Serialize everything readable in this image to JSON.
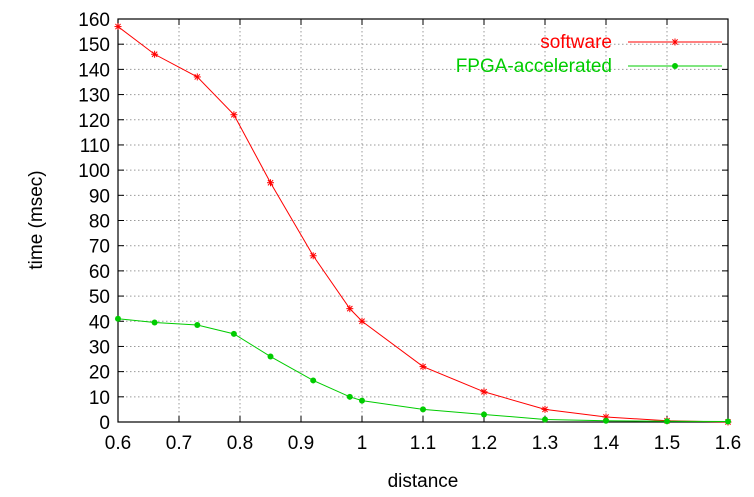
{
  "chart_data": {
    "type": "line",
    "xlabel": "distance",
    "ylabel": "time (msec)",
    "xlim": [
      0.6,
      1.6
    ],
    "ylim": [
      0,
      160
    ],
    "xticks": [
      0.6,
      0.7,
      0.8,
      0.9,
      1.0,
      1.1,
      1.2,
      1.3,
      1.4,
      1.5,
      1.6
    ],
    "xtick_labels": [
      "0.6",
      "0.7",
      "0.8",
      "0.9",
      "1",
      "1.1",
      "1.2",
      "1.3",
      "1.4",
      "1.5",
      "1.6"
    ],
    "yticks": [
      0,
      10,
      20,
      30,
      40,
      50,
      60,
      70,
      80,
      90,
      100,
      110,
      120,
      130,
      140,
      150,
      160
    ],
    "ytick_labels": [
      "0",
      "10",
      "20",
      "30",
      "40",
      "50",
      "60",
      "70",
      "80",
      "90",
      "100",
      "110",
      "120",
      "130",
      "140",
      "150",
      "160"
    ],
    "grid": true,
    "legend_position": "top-right",
    "series": [
      {
        "name": "software",
        "color": "#ff0000",
        "marker": "star",
        "x": [
          0.6,
          0.66,
          0.73,
          0.79,
          0.85,
          0.92,
          0.98,
          1.0,
          1.1,
          1.2,
          1.3,
          1.4,
          1.5,
          1.6
        ],
        "y": [
          157,
          146,
          137,
          122,
          95,
          66,
          45,
          40,
          22,
          12,
          5,
          2,
          0.5,
          0
        ]
      },
      {
        "name": "FPGA-accelerated",
        "color": "#00cc00",
        "marker": "dot",
        "x": [
          0.6,
          0.66,
          0.73,
          0.79,
          0.85,
          0.92,
          0.98,
          1.0,
          1.1,
          1.2,
          1.3,
          1.4,
          1.5,
          1.6
        ],
        "y": [
          41,
          39.5,
          38.5,
          35,
          26,
          16.5,
          10,
          8.5,
          5,
          3,
          1,
          0.5,
          0.3,
          0.2
        ]
      }
    ]
  }
}
